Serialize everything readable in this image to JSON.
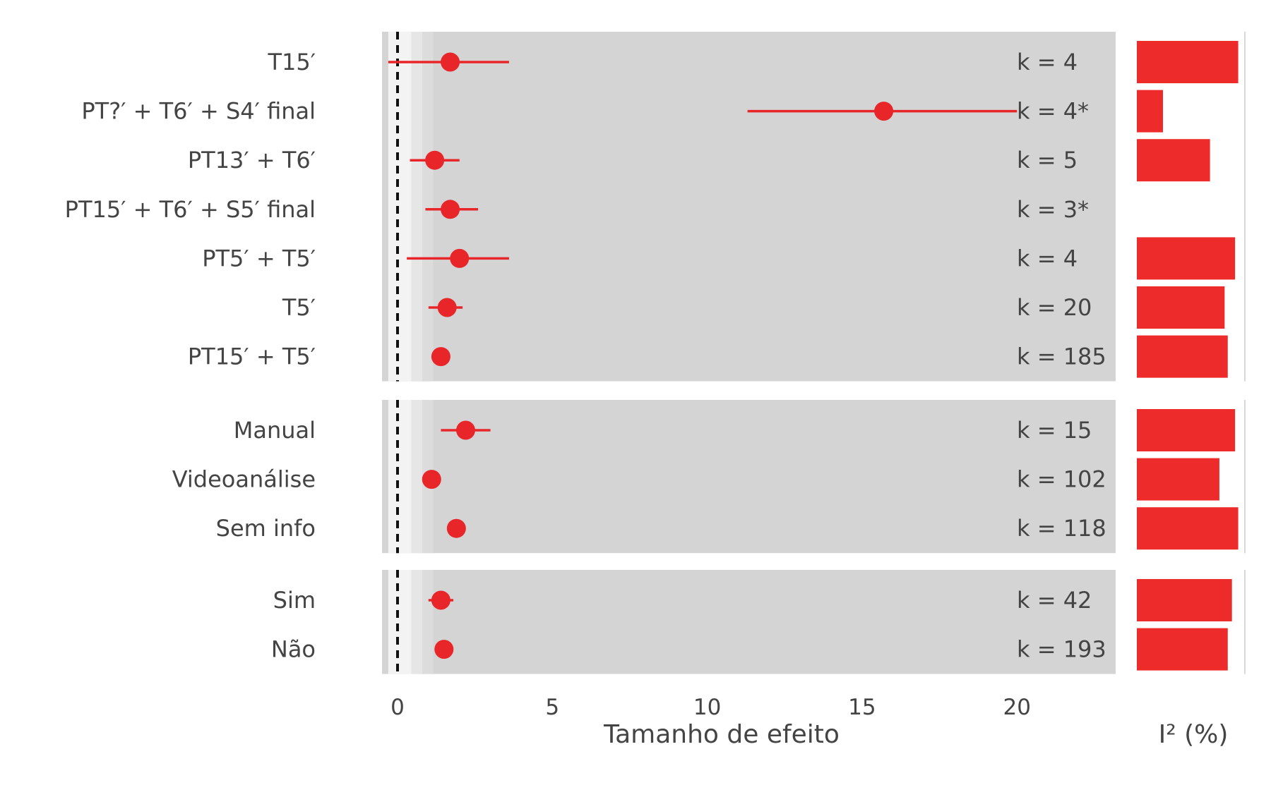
{
  "chart_data": {
    "type": "forest",
    "xlabel": "Tamanho de efeito",
    "i2_label": "I² (%)",
    "xlim": [
      -0.3,
      23.3
    ],
    "xticks": [
      0,
      5,
      10,
      15,
      20
    ],
    "reference_line": 0,
    "colors": {
      "point": "#e8262a",
      "panel": "#d3d3d3",
      "bar": "#ee2b2b"
    },
    "groups": [
      {
        "rows": [
          {
            "label": "T15′",
            "estimate": 1.7,
            "ci": [
              -0.3,
              3.6
            ],
            "k": "k = 4",
            "i2": 97
          },
          {
            "label": "PT?′ + T6′ + S4′ final",
            "estimate": 15.7,
            "ci": [
              11.3,
              20.0
            ],
            "k": "k = 4*",
            "i2": 25
          },
          {
            "label": "PT13′ + T6′",
            "estimate": 1.2,
            "ci": [
              0.4,
              2.0
            ],
            "k": "k = 5",
            "i2": 70
          },
          {
            "label": "PT15′ + T6′ + S5′ final",
            "estimate": 1.7,
            "ci": [
              0.9,
              2.6
            ],
            "k": "k = 3*",
            "i2": 0
          },
          {
            "label": "PT5′ + T5′",
            "estimate": 2.0,
            "ci": [
              0.3,
              3.6
            ],
            "k": "k = 4",
            "i2": 94
          },
          {
            "label": "T5′",
            "estimate": 1.6,
            "ci": [
              1.0,
              2.1
            ],
            "k": "k = 20",
            "i2": 84
          },
          {
            "label": "PT15′ + T5′",
            "estimate": 1.4,
            "ci": [
              1.2,
              1.6
            ],
            "k": "k = 185",
            "i2": 87
          }
        ]
      },
      {
        "rows": [
          {
            "label": "Manual",
            "estimate": 2.2,
            "ci": [
              1.4,
              3.0
            ],
            "k": "k = 15",
            "i2": 94
          },
          {
            "label": "Videoanálise",
            "estimate": 1.1,
            "ci": [
              0.9,
              1.3
            ],
            "k": "k = 102",
            "i2": 79
          },
          {
            "label": "Sem info",
            "estimate": 1.9,
            "ci": [
              1.6,
              2.2
            ],
            "k": "k = 118",
            "i2": 97
          }
        ]
      },
      {
        "rows": [
          {
            "label": "Sim",
            "estimate": 1.4,
            "ci": [
              1.0,
              1.8
            ],
            "k": "k = 42",
            "i2": 91
          },
          {
            "label": "Não",
            "estimate": 1.5,
            "ci": [
              1.3,
              1.7
            ],
            "k": "k = 193",
            "i2": 87
          }
        ]
      }
    ]
  }
}
